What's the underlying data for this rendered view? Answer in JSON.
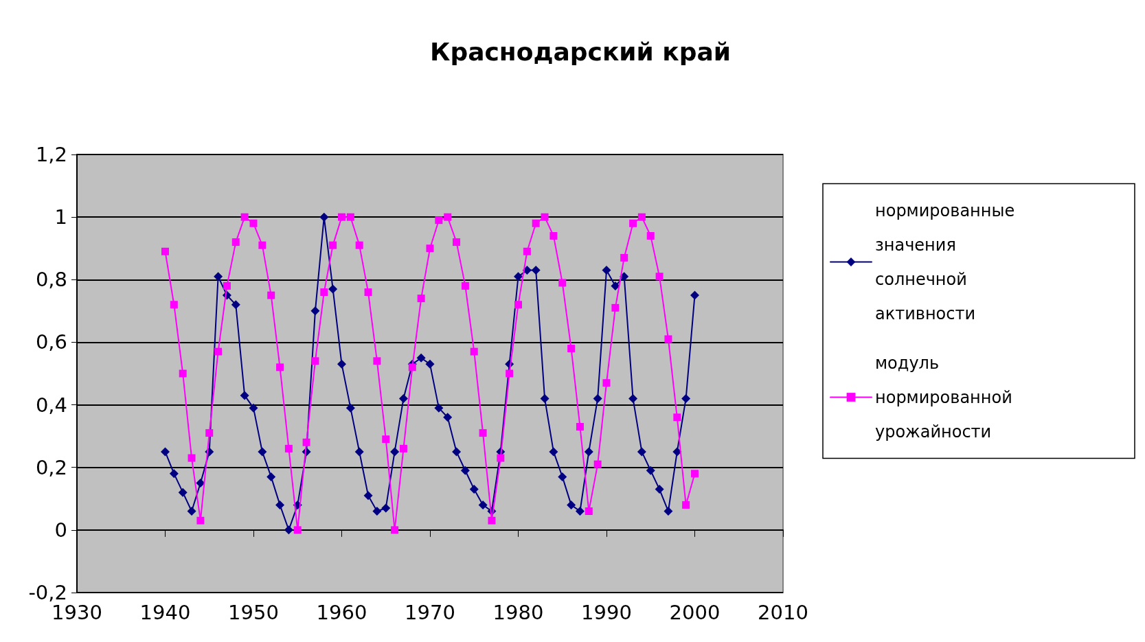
{
  "chart_data": {
    "type": "line",
    "title": "Краснодарский край",
    "x": [
      1940,
      1941,
      1942,
      1943,
      1944,
      1945,
      1946,
      1947,
      1948,
      1949,
      1950,
      1951,
      1952,
      1953,
      1954,
      1955,
      1956,
      1957,
      1958,
      1959,
      1960,
      1961,
      1962,
      1963,
      1964,
      1965,
      1966,
      1967,
      1968,
      1969,
      1970,
      1971,
      1972,
      1973,
      1974,
      1975,
      1976,
      1977,
      1978,
      1979,
      1980,
      1981,
      1982,
      1983,
      1984,
      1985,
      1986,
      1987,
      1988,
      1989,
      1990,
      1991,
      1992,
      1993,
      1994,
      1995,
      1996,
      1997,
      1998,
      1999,
      2000
    ],
    "series": [
      {
        "name": "нормированные значения солнечной активности",
        "color": "#000080",
        "marker": "diamond",
        "values": [
          0.25,
          0.18,
          0.12,
          0.06,
          0.15,
          0.25,
          0.81,
          0.75,
          0.72,
          0.43,
          0.39,
          0.25,
          0.17,
          0.08,
          0.0,
          0.08,
          0.25,
          0.7,
          1.0,
          0.77,
          0.53,
          0.39,
          0.25,
          0.11,
          0.06,
          0.07,
          0.25,
          0.42,
          0.53,
          0.55,
          0.53,
          0.39,
          0.36,
          0.25,
          0.19,
          0.13,
          0.08,
          0.06,
          0.25,
          0.53,
          0.81,
          0.83,
          0.83,
          0.42,
          0.25,
          0.17,
          0.08,
          0.06,
          0.25,
          0.42,
          0.83,
          0.78,
          0.81,
          0.42,
          0.25,
          0.19,
          0.13,
          0.06,
          0.25,
          0.42,
          0.75
        ]
      },
      {
        "name": "модуль нормированной урожайности",
        "color": "#ff00ff",
        "marker": "square",
        "values": [
          0.89,
          0.72,
          0.5,
          0.23,
          0.03,
          0.31,
          0.57,
          0.78,
          0.92,
          1.0,
          0.98,
          0.91,
          0.75,
          0.52,
          0.26,
          0.0,
          0.28,
          0.54,
          0.76,
          0.91,
          1.0,
          1.0,
          0.91,
          0.76,
          0.54,
          0.29,
          0.0,
          0.26,
          0.52,
          0.74,
          0.9,
          0.99,
          1.0,
          0.92,
          0.78,
          0.57,
          0.31,
          0.03,
          0.23,
          0.5,
          0.72,
          0.89,
          0.98,
          1.0,
          0.94,
          0.79,
          0.58,
          0.33,
          0.06,
          0.21,
          0.47,
          0.71,
          0.87,
          0.98,
          1.0,
          0.94,
          0.81,
          0.61,
          0.36,
          0.08,
          0.18
        ]
      }
    ],
    "xlim": [
      1930,
      2010
    ],
    "xticks": [
      1930,
      1940,
      1950,
      1960,
      1970,
      1980,
      1990,
      2000,
      2010
    ],
    "ylim": [
      -0.2,
      1.2
    ],
    "yticks": [
      {
        "value": -0.2,
        "label": "-0,2"
      },
      {
        "value": 0,
        "label": "0"
      },
      {
        "value": 0.2,
        "label": "0,2"
      },
      {
        "value": 0.4,
        "label": "0,4"
      },
      {
        "value": 0.6,
        "label": "0,6"
      },
      {
        "value": 0.8,
        "label": "0,8"
      },
      {
        "value": 1,
        "label": "1"
      },
      {
        "value": 1.2,
        "label": "1,2"
      }
    ],
    "grid": "y",
    "legend": "right",
    "line_style": "solid"
  }
}
